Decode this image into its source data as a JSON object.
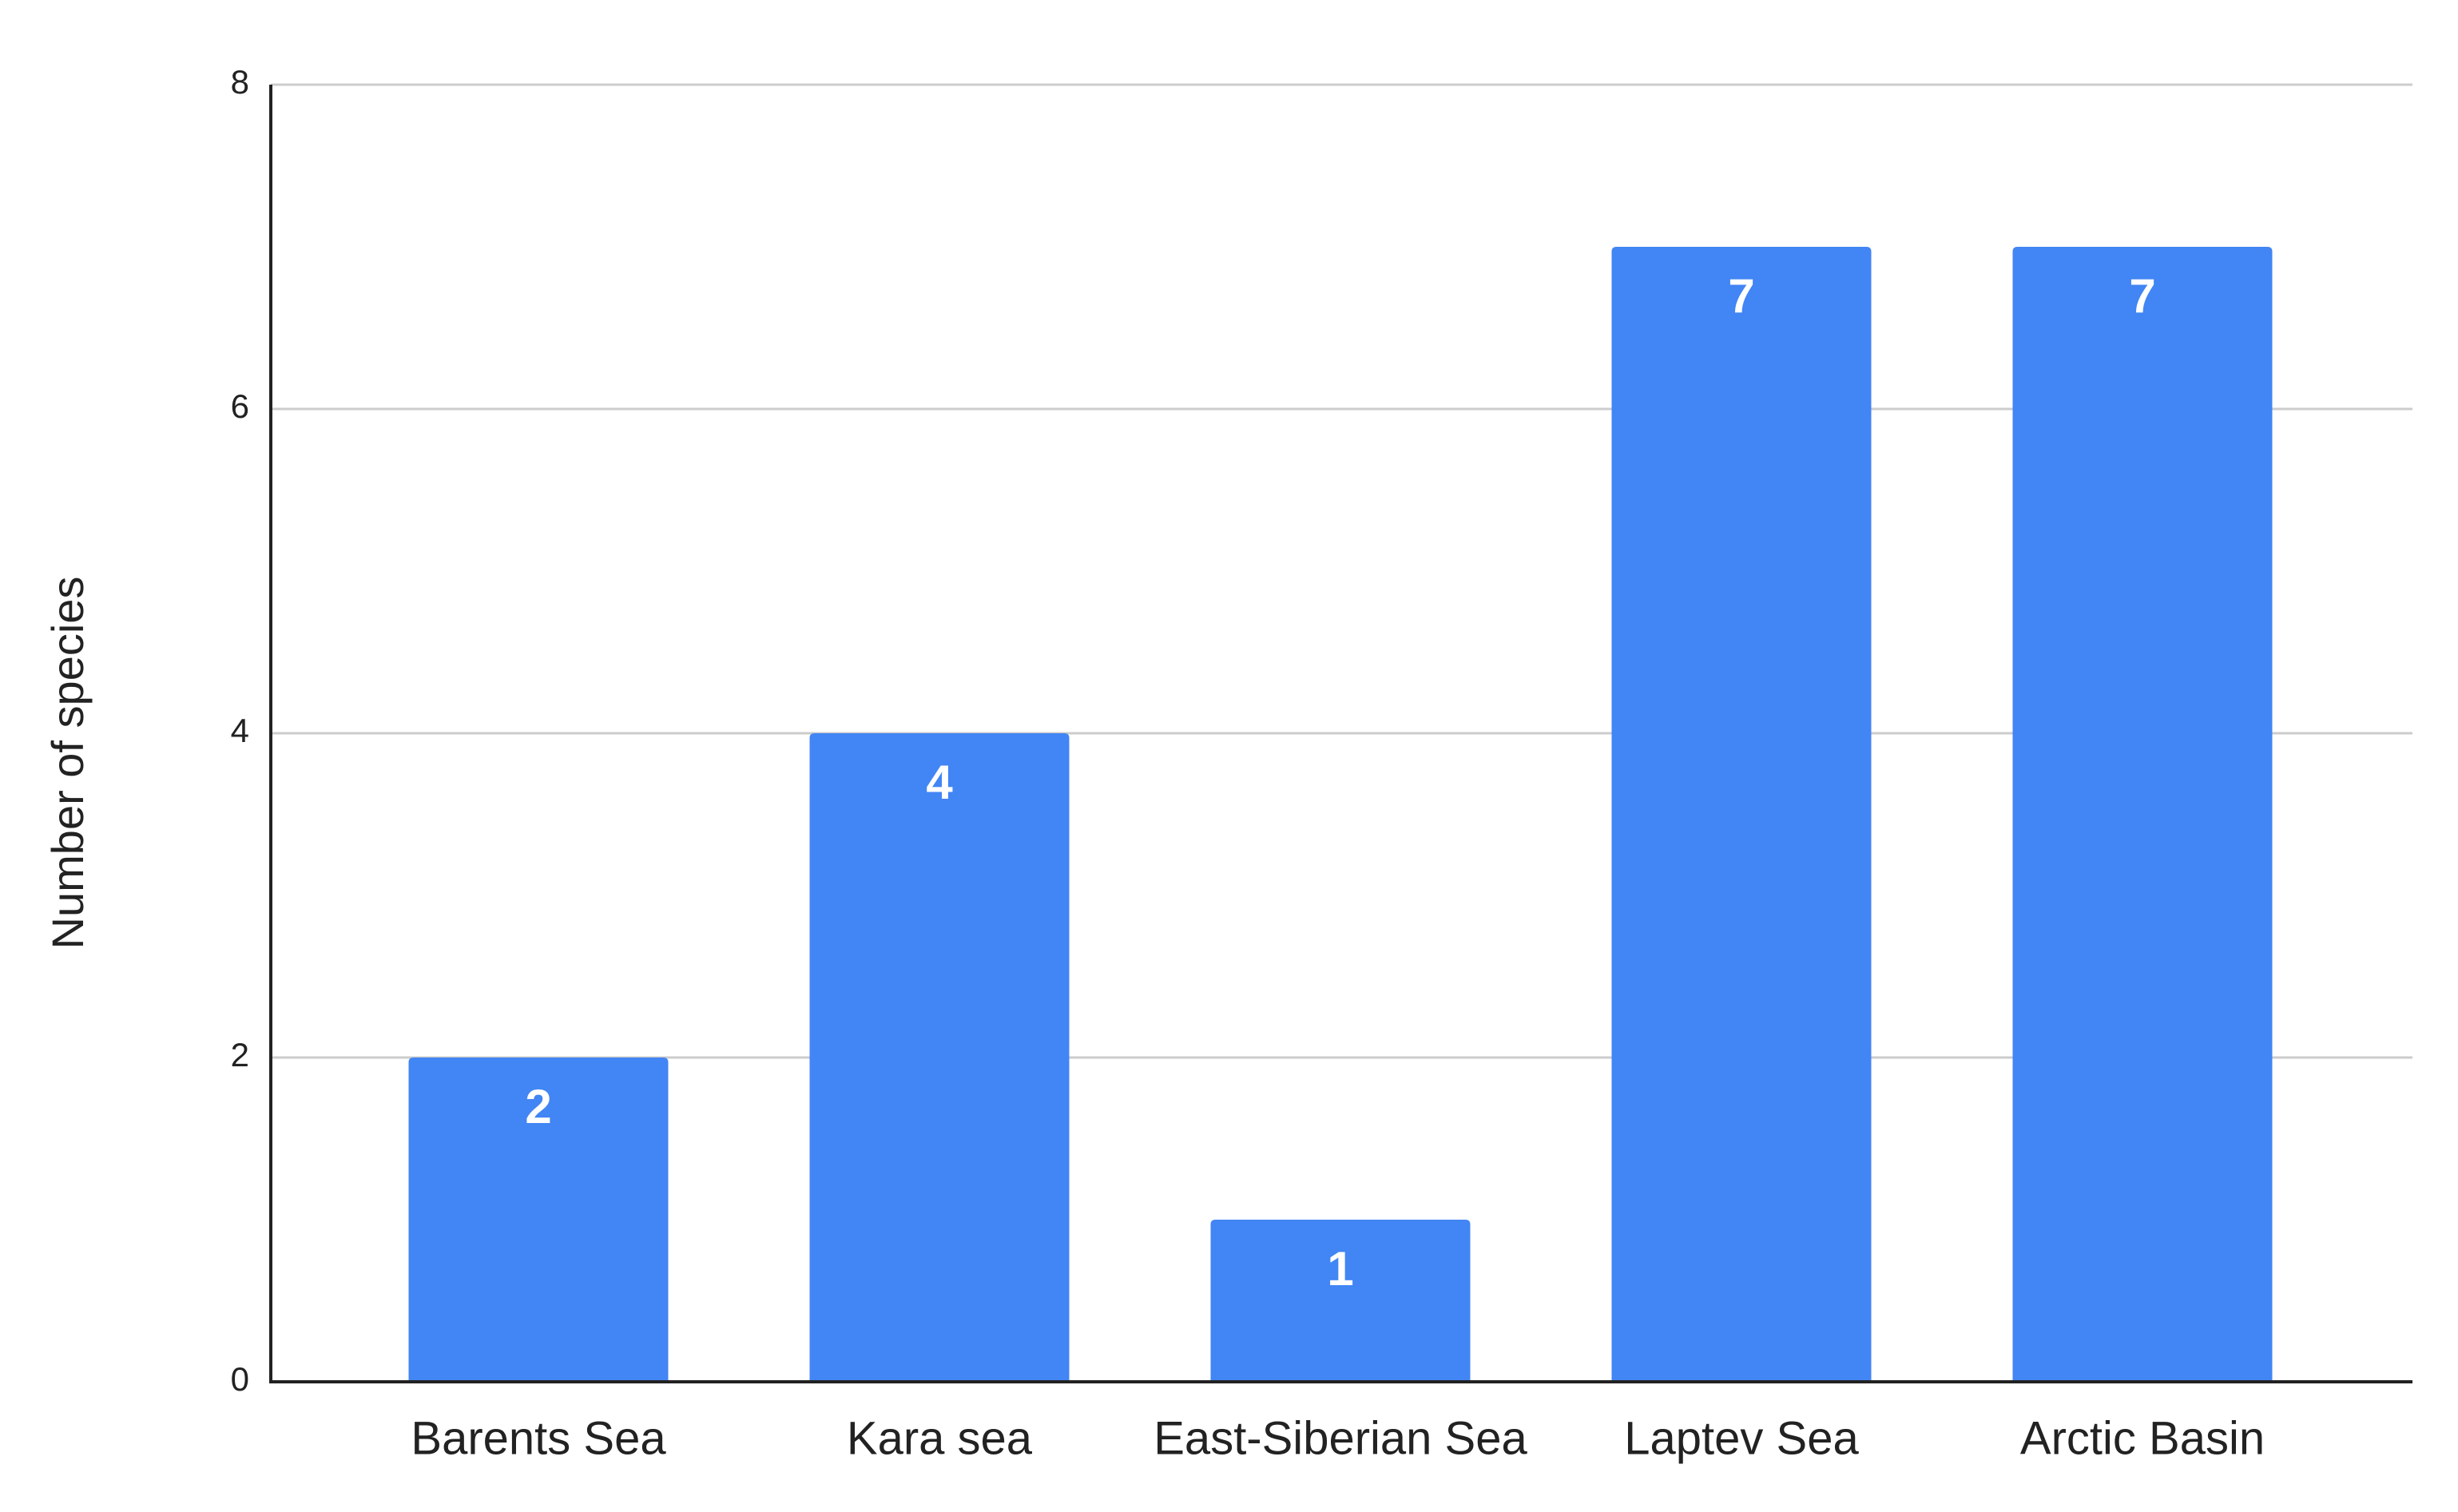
{
  "chart_data": {
    "type": "bar",
    "y_label": "Number of species",
    "categories": [
      "Barents Sea",
      "Kara sea",
      "East-Siberian Sea",
      "Laptev Sea",
      "Arctic Basin"
    ],
    "values": [
      2,
      4,
      1,
      7,
      7
    ],
    "color": "#4285f4",
    "ylim": [
      0,
      8
    ],
    "yticks": [
      0,
      2,
      4,
      6,
      8
    ],
    "grid": true
  }
}
